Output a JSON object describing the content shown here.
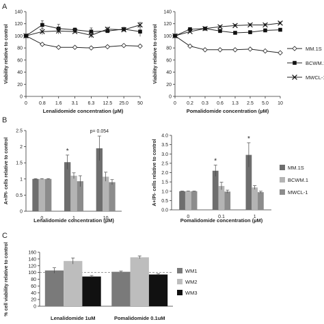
{
  "chart_data": [
    {
      "panel": "A",
      "type": "line",
      "xlabel": "Lenalidomide concentration (µM)",
      "ylabel": "Viability relative to control",
      "categories": [
        "0",
        "0.8",
        "1.6",
        "3.1",
        "6.3",
        "12.5",
        "25.0",
        "50"
      ],
      "ylim": [
        0,
        140
      ],
      "yticks": [
        0,
        20,
        40,
        60,
        80,
        100,
        120,
        140
      ],
      "series": [
        {
          "name": "MM.1S",
          "values": [
            100,
            86,
            81,
            81,
            80,
            82,
            84,
            83
          ],
          "err": [
            0,
            2,
            2,
            2,
            2,
            2,
            2,
            2
          ],
          "marker": "diamond",
          "color": "#222222"
        },
        {
          "name": "BCWM.1",
          "values": [
            100,
            118,
            112,
            110,
            107,
            108,
            111,
            107
          ],
          "err": [
            0,
            7,
            7,
            3,
            6,
            3,
            3,
            8
          ],
          "marker": "square",
          "color": "#222222"
        },
        {
          "name": "MWCL-1",
          "values": [
            100,
            107,
            108,
            107,
            101,
            111,
            110,
            118
          ],
          "err": [
            0,
            5,
            5,
            3,
            4,
            3,
            3,
            4
          ],
          "marker": "x",
          "color": "#222222"
        }
      ]
    },
    {
      "panel": "A",
      "type": "line",
      "xlabel": "Pomalidomide concentration (µM)",
      "ylabel": "Viability relative to control",
      "categories": [
        "0",
        "0.2",
        "0.3",
        "0.6",
        "1.3",
        "2.5",
        "5.0",
        "10"
      ],
      "ylim": [
        0,
        140
      ],
      "yticks": [
        0,
        20,
        40,
        60,
        80,
        100,
        120,
        140
      ],
      "series": [
        {
          "name": "MM.1S",
          "values": [
            100,
            83,
            77,
            77,
            77,
            78,
            75,
            72
          ],
          "err": [
            0,
            1,
            1,
            1,
            1,
            1,
            1,
            1
          ],
          "marker": "diamond",
          "color": "#222222"
        },
        {
          "name": "BCWM.1",
          "values": [
            100,
            111,
            112,
            108,
            105,
            106,
            109,
            110
          ],
          "err": [
            0,
            2,
            2,
            2,
            2,
            2,
            2,
            2
          ],
          "marker": "square",
          "color": "#222222"
        },
        {
          "name": "MWCL-1",
          "values": [
            100,
            107,
            112,
            115,
            117,
            118,
            118,
            121
          ],
          "err": [
            0,
            2,
            2,
            2,
            2,
            2,
            2,
            2
          ],
          "marker": "x",
          "color": "#222222"
        }
      ]
    },
    {
      "panel": "B",
      "type": "bar",
      "xlabel": "Lenalidomide concentration (µM)",
      "ylabel": "A+/PI- cells relative to control",
      "categories": [
        "0",
        "1",
        "10"
      ],
      "ylim": [
        0,
        2.5
      ],
      "yticks": [
        0,
        0.5,
        1,
        1.5,
        2,
        2.5
      ],
      "series": [
        {
          "name": "MM.1S",
          "values": [
            1.0,
            1.52,
            1.95
          ],
          "err": [
            0.01,
            0.22,
            0.38
          ],
          "color": "#6e6e6e"
        },
        {
          "name": "BCWM.1",
          "values": [
            1.0,
            1.1,
            1.07
          ],
          "err": [
            0.01,
            0.09,
            0.14
          ],
          "color": "#b4b4b4"
        },
        {
          "name": "MWCL-1",
          "values": [
            1.0,
            0.93,
            0.9
          ],
          "err": [
            0.01,
            0.17,
            0.08
          ],
          "color": "#8c8c8c"
        }
      ],
      "annotations": [
        {
          "category": "1",
          "series": "MM.1S",
          "text": "*"
        },
        {
          "category": "10",
          "series": "MM.1S",
          "text": "p= 0.054"
        }
      ]
    },
    {
      "panel": "B",
      "type": "bar",
      "xlabel": "Pomalidomide concentration (µM)",
      "ylabel": "A+/PI- cells relative to control",
      "categories": [
        "0",
        "0.1",
        "1"
      ],
      "ylim": [
        0,
        4.0
      ],
      "yticks": [
        "0.0",
        "0.5",
        "1.0",
        "1.5",
        "2.0",
        "2.5",
        "3.0",
        "3.5",
        "4.0"
      ],
      "series": [
        {
          "name": "MM.1S",
          "values": [
            1.0,
            2.1,
            2.95
          ],
          "err": [
            0.01,
            0.3,
            0.65
          ],
          "color": "#6e6e6e"
        },
        {
          "name": "BCWM.1",
          "values": [
            1.0,
            1.28,
            1.2
          ],
          "err": [
            0.01,
            0.2,
            0.1
          ],
          "color": "#b4b4b4"
        },
        {
          "name": "MWCL-1",
          "values": [
            1.0,
            0.98,
            0.95
          ],
          "err": [
            0.01,
            0.08,
            0.05
          ],
          "color": "#8c8c8c"
        }
      ],
      "annotations": [
        {
          "category": "0.1",
          "series": "MM.1S",
          "text": "*"
        },
        {
          "category": "1",
          "series": "MM.1S",
          "text": "*"
        }
      ]
    },
    {
      "panel": "C",
      "type": "bar",
      "xlabel": "",
      "ylabel": "% cell viability relative to control",
      "categories": [
        "Lenalidomide 1uM",
        "Pomalidomide 0.1uM"
      ],
      "ylim": [
        0,
        160
      ],
      "yticks": [
        0,
        20,
        40,
        60,
        80,
        100,
        120,
        140,
        160
      ],
      "reference_line": 100,
      "series": [
        {
          "name": "WM1",
          "values": [
            106,
            102
          ],
          "err": [
            8,
            2
          ],
          "color": "#7a7a7a"
        },
        {
          "name": "WM2",
          "values": [
            134,
            145
          ],
          "err": [
            9,
            4
          ],
          "color": "#bdbdbd"
        },
        {
          "name": "WM3",
          "values": [
            88,
            94
          ],
          "err": [
            3,
            2
          ],
          "color": "#111111"
        }
      ]
    }
  ]
}
